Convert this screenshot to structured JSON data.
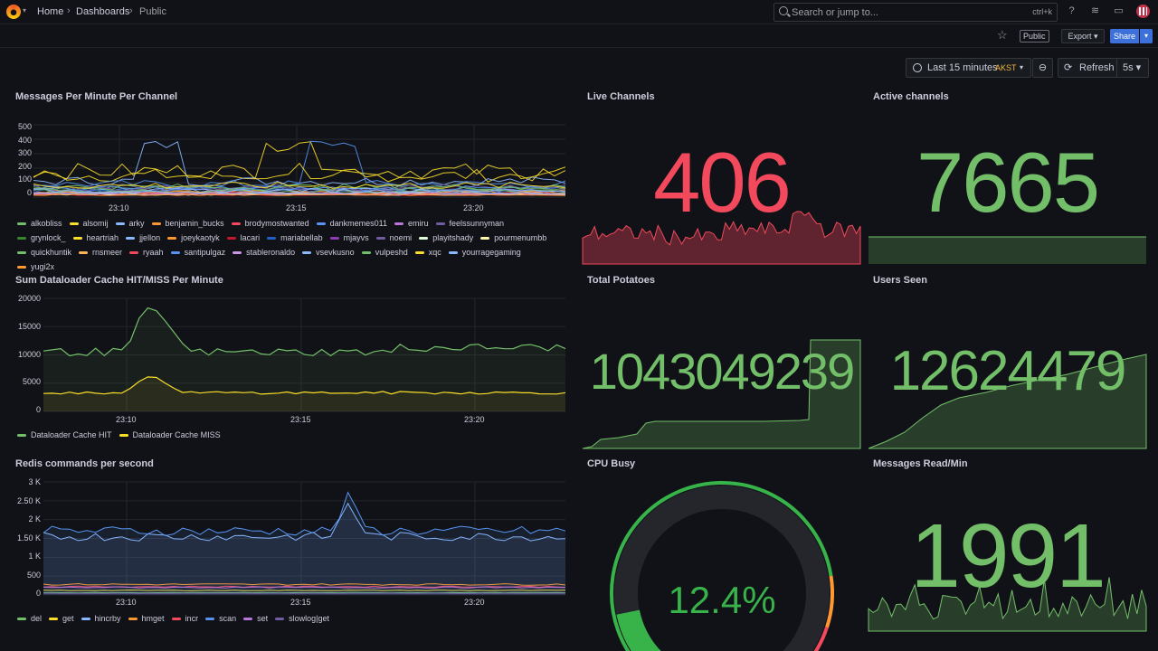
{
  "breadcrumbs": {
    "home": "Home",
    "dashboards": "Dashboards",
    "current": "Public"
  },
  "search": {
    "placeholder": "Search or jump to...",
    "shortcut": "ctrl+k"
  },
  "toolbar": {
    "public_badge": "Public",
    "export_label": "Export",
    "share_label": "Share"
  },
  "time": {
    "range": "Last 15 minutes",
    "tz": "AKST",
    "refresh_label": "Refresh",
    "refresh_interval": "5s"
  },
  "colors": {
    "bg": "#111217",
    "green": "#73bf69",
    "red": "#f2495c",
    "yellow": "#fade2a",
    "blue": "#5794f2",
    "orange": "#ff9830",
    "purple": "#b877d9"
  },
  "panels": {
    "messages": {
      "title": "Messages Per Minute Per Channel",
      "yticks": [
        "500",
        "400",
        "300",
        "200",
        "100",
        "0"
      ],
      "xticks": [
        "23:10",
        "23:15",
        "23:20"
      ],
      "legend": [
        {
          "name": "alkobliss",
          "color": "#73bf69"
        },
        {
          "name": "alsomij",
          "color": "#fade2a"
        },
        {
          "name": "arky",
          "color": "#8ab8ff"
        },
        {
          "name": "benjamin_bucks",
          "color": "#ff9830"
        },
        {
          "name": "brodymostwanted",
          "color": "#f2495c"
        },
        {
          "name": "dankmemes011",
          "color": "#5794f2"
        },
        {
          "name": "emiru",
          "color": "#b877d9"
        },
        {
          "name": "feelssunnyman",
          "color": "#705da0"
        },
        {
          "name": "grynlock_",
          "color": "#37872d"
        },
        {
          "name": "heartriah",
          "color": "#fade2a"
        },
        {
          "name": "jjellon",
          "color": "#8ab8ff"
        },
        {
          "name": "joeykaotyk",
          "color": "#ff9830"
        },
        {
          "name": "lacari",
          "color": "#c4162a"
        },
        {
          "name": "mariabellab",
          "color": "#1f60c4"
        },
        {
          "name": "mjayvs",
          "color": "#8f3bb8"
        },
        {
          "name": "noemi",
          "color": "#705da0"
        },
        {
          "name": "playitshady",
          "color": "#e0f9d7"
        },
        {
          "name": "pourmenumbb",
          "color": "#fcf7ad"
        },
        {
          "name": "quickhuntik",
          "color": "#73bf69"
        },
        {
          "name": "rnsmeer",
          "color": "#ffb357"
        },
        {
          "name": "ryaah",
          "color": "#f2495c"
        },
        {
          "name": "santipulgaz",
          "color": "#5794f2"
        },
        {
          "name": "stableronaldo",
          "color": "#ca95e5"
        },
        {
          "name": "vsevkusno",
          "color": "#8ab8ff"
        },
        {
          "name": "vulpeshd",
          "color": "#73bf69"
        },
        {
          "name": "xqc",
          "color": "#fade2a"
        },
        {
          "name": "yourragegaming",
          "color": "#8ab8ff"
        },
        {
          "name": "yugi2x",
          "color": "#ff9830"
        }
      ]
    },
    "cache": {
      "title": "Sum Dataloader Cache HIT/MISS Per Minute",
      "yticks": [
        "20000",
        "15000",
        "10000",
        "5000",
        "0"
      ],
      "xticks": [
        "23:10",
        "23:15",
        "23:20"
      ],
      "legend": [
        {
          "name": "Dataloader Cache HIT",
          "color": "#73bf69"
        },
        {
          "name": "Dataloader Cache MISS",
          "color": "#fade2a"
        }
      ]
    },
    "redis": {
      "title": "Redis commands per second",
      "yticks": [
        "3 K",
        "2.50 K",
        "2 K",
        "1.50 K",
        "1 K",
        "500",
        "0"
      ],
      "xticks": [
        "23:10",
        "23:15",
        "23:20"
      ],
      "legend": [
        {
          "name": "del",
          "color": "#73bf69"
        },
        {
          "name": "get",
          "color": "#fade2a"
        },
        {
          "name": "hincrby",
          "color": "#8ab8ff"
        },
        {
          "name": "hmget",
          "color": "#ff9830"
        },
        {
          "name": "incr",
          "color": "#f2495c"
        },
        {
          "name": "scan",
          "color": "#5794f2"
        },
        {
          "name": "set",
          "color": "#b877d9"
        },
        {
          "name": "slowlog|get",
          "color": "#705da0"
        }
      ]
    },
    "live_channels": {
      "title": "Live Channels",
      "value": "406"
    },
    "active_channels": {
      "title": "Active channels",
      "value": "7665"
    },
    "total_potatoes": {
      "title": "Total Potatoes",
      "value": "1043049239"
    },
    "users_seen": {
      "title": "Users Seen",
      "value": "12624479"
    },
    "cpu_busy": {
      "title": "CPU Busy",
      "value": "12.4%",
      "percent": 12.4
    },
    "messages_read": {
      "title": "Messages Read/Min",
      "value": "1991"
    }
  }
}
